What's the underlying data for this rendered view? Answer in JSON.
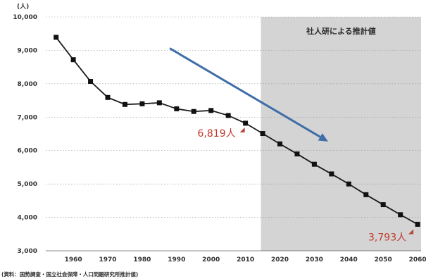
{
  "chart_data": {
    "type": "line",
    "unit_label": "(人)",
    "x": [
      1955,
      1960,
      1965,
      1970,
      1975,
      1980,
      1985,
      1990,
      1995,
      2000,
      2005,
      2010,
      2015,
      2020,
      2025,
      2030,
      2035,
      2040,
      2045,
      2050,
      2055,
      2060
    ],
    "series": [
      {
        "values": [
          9390,
          8720,
          8070,
          7590,
          7380,
          7400,
          7430,
          7250,
          7170,
          7200,
          7050,
          6819,
          6510,
          6200,
          5900,
          5590,
          5300,
          5000,
          4680,
          4380,
          4080,
          3793
        ]
      }
    ],
    "xticks": [
      "1960",
      "1970",
      "1980",
      "1990",
      "2000",
      "2010",
      "2020",
      "2030",
      "2040",
      "2050",
      "2060"
    ],
    "yticks": [
      "3,000",
      "4,000",
      "5,000",
      "6,000",
      "7,000",
      "8,000",
      "9,000",
      "10,000"
    ],
    "ylim": [
      3000,
      10000
    ],
    "xlim": [
      1952,
      2061
    ],
    "grid": "horizontal-dotted",
    "projection_region": {
      "start": 2014.5,
      "end": 2061,
      "label": "社人研による推計値",
      "color": "#d4d4d4"
    },
    "annotations": [
      {
        "text": "6,819人",
        "x": 2010,
        "y": 6819
      },
      {
        "text": "3,793人",
        "x": 2060,
        "y": 3793
      }
    ],
    "trend_arrow": {
      "from": [
        1988,
        9060
      ],
      "to": [
        2034,
        6270
      ]
    },
    "source": "(資料：国勢調査・国立社会保障・人口問題研究所推計値)",
    "colors": {
      "line": "#1a1a1a",
      "marker": "#111111",
      "arrow": "#3f6ea8",
      "annotation": "#c0392b",
      "annotation_marker": "#b5463a",
      "grid": "#999999"
    }
  }
}
